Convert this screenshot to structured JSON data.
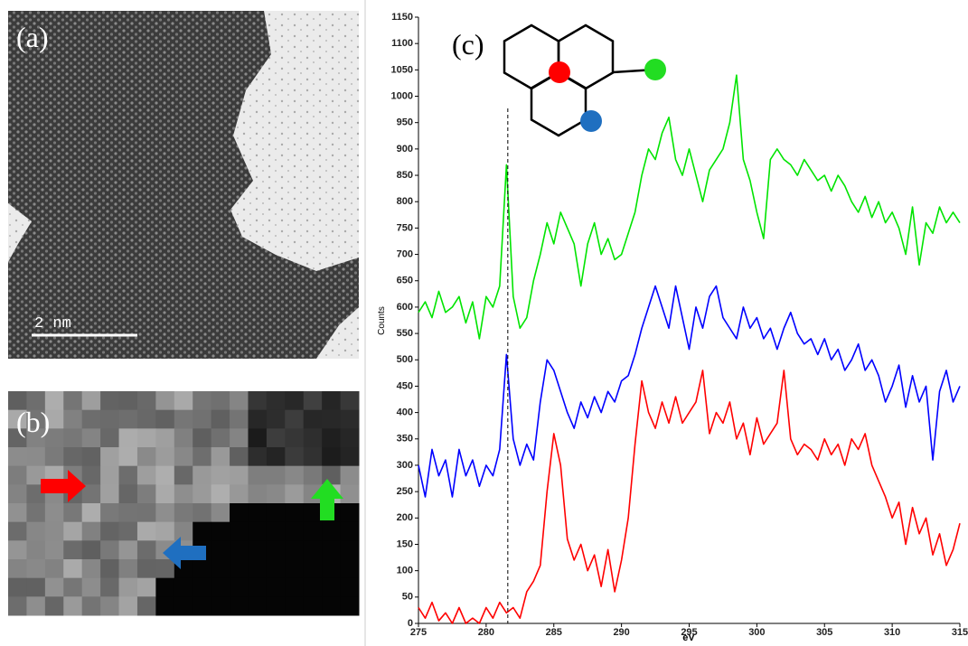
{
  "panels": [
    {
      "label": "(a)",
      "scale_bar": "2 nm"
    },
    {
      "label": "(b)"
    }
  ],
  "chart_data": {
    "type": "line",
    "panel_label": "(c)",
    "xlabel": "eV",
    "ylabel": "Counts",
    "x": [
      275,
      275.5,
      276,
      276.5,
      277,
      277.5,
      278,
      278.5,
      279,
      279.5,
      280,
      280.5,
      281,
      281.5,
      282,
      282.5,
      283,
      283.5,
      284,
      284.5,
      285,
      285.5,
      286,
      286.5,
      287,
      287.5,
      288,
      288.5,
      289,
      289.5,
      290,
      290.5,
      291,
      291.5,
      292,
      292.5,
      293,
      293.5,
      294,
      294.5,
      295,
      295.5,
      296,
      296.5,
      297,
      297.5,
      298,
      298.5,
      299,
      299.5,
      300,
      300.5,
      301,
      301.5,
      302,
      302.5,
      303,
      303.5,
      304,
      304.5,
      305,
      305.5,
      306,
      306.5,
      307,
      307.5,
      308,
      308.5,
      309,
      309.5,
      310,
      310.5,
      311,
      311.5,
      312,
      312.5,
      313,
      313.5,
      314,
      314.5,
      315
    ],
    "series": [
      {
        "color": "#00e400",
        "values": [
          590,
          610,
          580,
          630,
          590,
          600,
          620,
          570,
          610,
          540,
          620,
          600,
          640,
          870,
          620,
          560,
          580,
          650,
          700,
          760,
          720,
          780,
          750,
          720,
          640,
          720,
          760,
          700,
          730,
          690,
          700,
          740,
          780,
          850,
          900,
          880,
          930,
          960,
          880,
          850,
          900,
          850,
          800,
          860,
          880,
          900,
          950,
          1040,
          880,
          840,
          780,
          730,
          880,
          900,
          880,
          870,
          850,
          880,
          860,
          840,
          850,
          820,
          850,
          830,
          800,
          780,
          810,
          770,
          800,
          760,
          780,
          750,
          700,
          790,
          680,
          760,
          740,
          790,
          760,
          780,
          760
        ]
      },
      {
        "color": "#0000ff",
        "values": [
          300,
          240,
          330,
          280,
          310,
          240,
          330,
          280,
          310,
          260,
          300,
          280,
          330,
          510,
          350,
          300,
          340,
          310,
          420,
          500,
          480,
          440,
          400,
          370,
          420,
          390,
          430,
          400,
          440,
          420,
          460,
          470,
          510,
          560,
          600,
          640,
          600,
          560,
          640,
          580,
          520,
          600,
          560,
          620,
          640,
          580,
          560,
          540,
          600,
          560,
          580,
          540,
          560,
          520,
          560,
          590,
          550,
          530,
          540,
          510,
          540,
          500,
          520,
          480,
          500,
          530,
          480,
          500,
          470,
          420,
          450,
          490,
          410,
          470,
          420,
          450,
          310,
          440,
          480,
          420,
          450
        ]
      },
      {
        "color": "#ff0000",
        "values": [
          30,
          10,
          40,
          5,
          20,
          0,
          30,
          0,
          10,
          0,
          30,
          10,
          40,
          20,
          30,
          10,
          60,
          80,
          110,
          250,
          360,
          300,
          160,
          120,
          150,
          100,
          130,
          70,
          140,
          60,
          120,
          200,
          340,
          460,
          400,
          370,
          420,
          380,
          430,
          380,
          400,
          420,
          480,
          360,
          400,
          380,
          420,
          350,
          380,
          320,
          390,
          340,
          360,
          380,
          480,
          350,
          320,
          340,
          330,
          310,
          350,
          320,
          340,
          300,
          350,
          330,
          360,
          300,
          270,
          240,
          200,
          230,
          150,
          220,
          170,
          200,
          130,
          170,
          110,
          140,
          190
        ]
      }
    ],
    "vline_x": 281.6,
    "xlim": [
      275,
      315
    ],
    "ylim": [
      0,
      1150
    ],
    "xticks": [
      275,
      280,
      285,
      290,
      295,
      300,
      305,
      310,
      315
    ],
    "yticks": [
      0,
      50,
      100,
      150,
      200,
      250,
      300,
      350,
      400,
      450,
      500,
      550,
      600,
      650,
      700,
      750,
      800,
      850,
      900,
      950,
      1000,
      1050,
      1100,
      1150
    ]
  }
}
